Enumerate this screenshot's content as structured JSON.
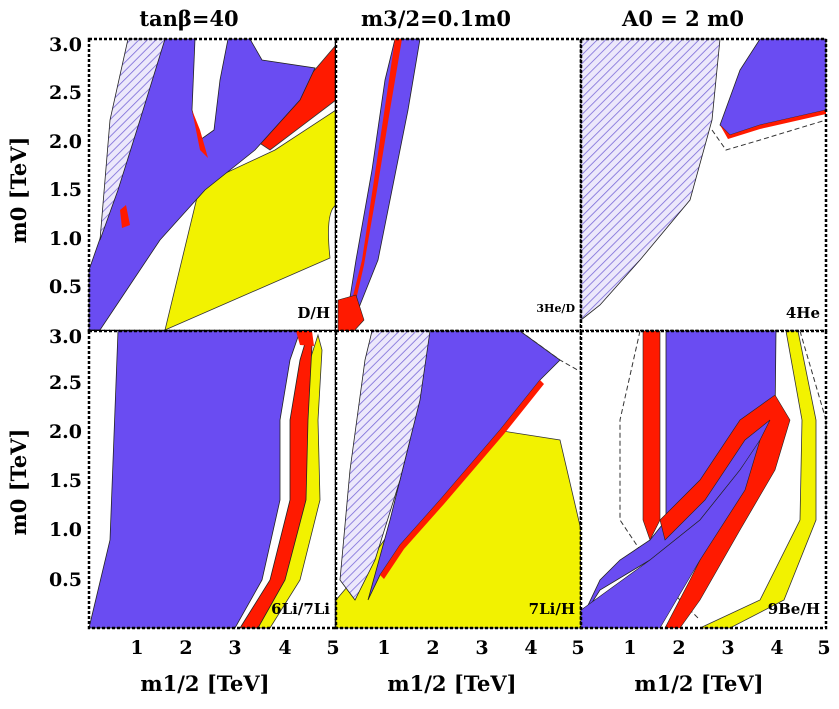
{
  "figure": {
    "titles": [
      "tanβ=40",
      "m3/2=0.1m0",
      "A0 = 2 m0"
    ],
    "colors": {
      "blue": "#6a4cf2",
      "red": "#ff1a00",
      "yellow": "#f2f200",
      "hatch": "#7b6ad8",
      "hatch_bg": "#ece8fb"
    }
  },
  "chart_data": {
    "type": "area",
    "layout": "2x3 grid of contour panels",
    "title": "tanβ=40, m3/2=0.1m0, A0 = 2 m0",
    "xlabel": "m1/2 [TeV]",
    "ylabel": "m0 [TeV]",
    "xlim": [
      0,
      5
    ],
    "ylim": [
      0,
      3.0
    ],
    "x_ticks": [
      "1",
      "2",
      "3",
      "4",
      "5"
    ],
    "y_ticks": [
      "0.5",
      "1.0",
      "1.5",
      "2.0",
      "2.5",
      "3.0"
    ],
    "grid": false,
    "panels": [
      {
        "label": "D/H"
      },
      {
        "label": "3He/D"
      },
      {
        "label": "4He"
      },
      {
        "label": "6Li/7Li"
      },
      {
        "label": "7Li/H"
      },
      {
        "label": "9Be/H"
      }
    ]
  }
}
